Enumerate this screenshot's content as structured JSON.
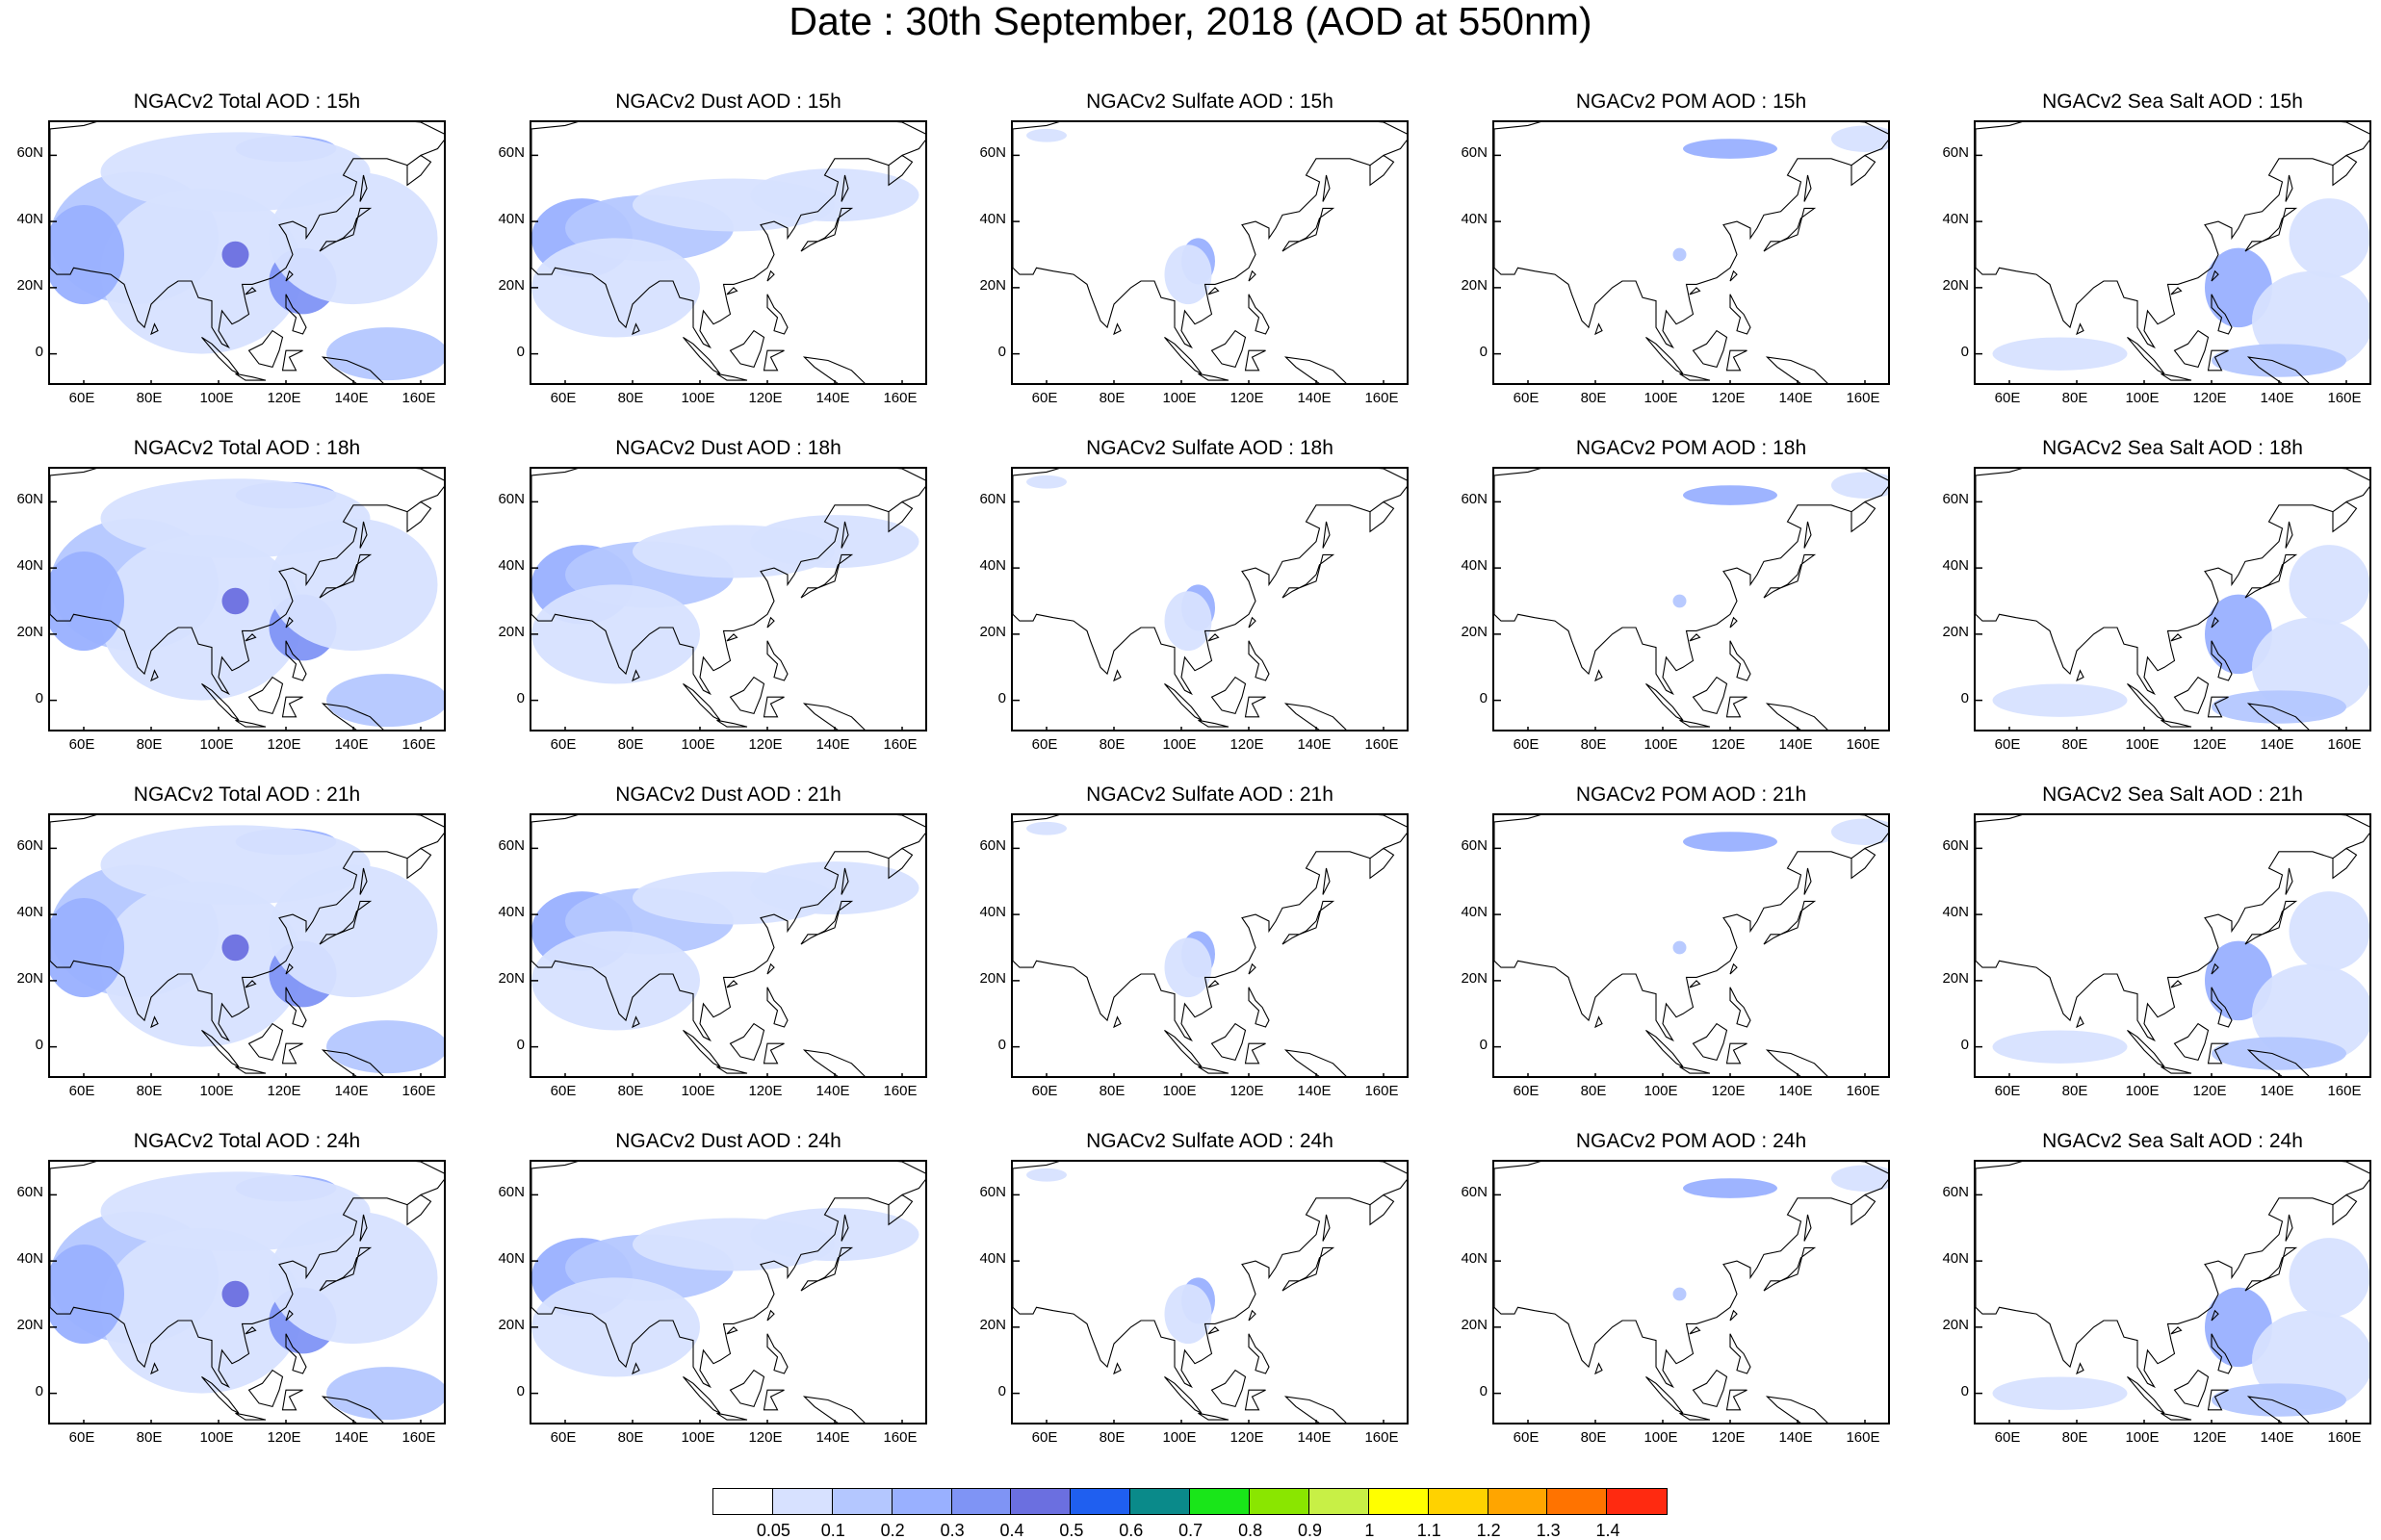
{
  "title": "Date : 30th September, 2018 (AOD at 550nm)",
  "panel_titles": [
    [
      "NGACv2 Total AOD : 15h",
      "NGACv2 Dust AOD : 15h",
      "NGACv2 Sulfate AOD : 15h",
      "NGACv2 POM AOD : 15h",
      "NGACv2 Sea Salt AOD : 15h"
    ],
    [
      "NGACv2 Total AOD : 18h",
      "NGACv2 Dust AOD : 18h",
      "NGACv2 Sulfate AOD : 18h",
      "NGACv2 POM AOD : 18h",
      "NGACv2 Sea Salt AOD : 18h"
    ],
    [
      "NGACv2 Total AOD : 21h",
      "NGACv2 Dust AOD : 21h",
      "NGACv2 Sulfate AOD : 21h",
      "NGACv2 POM AOD : 21h",
      "NGACv2 Sea Salt AOD : 21h"
    ],
    [
      "NGACv2 Total AOD : 24h",
      "NGACv2 Dust AOD : 24h",
      "NGACv2 Sulfate AOD : 24h",
      "NGACv2 POM AOD : 24h",
      "NGACv2 Sea Salt  AOD : 24h"
    ]
  ],
  "lat_ticks": [
    "60N",
    "40N",
    "20N",
    "0"
  ],
  "lon_ticks": [
    "60E",
    "80E",
    "100E",
    "120E",
    "140E",
    "160E"
  ],
  "colorbar": {
    "labels": [
      "0.05",
      "0.1",
      "0.2",
      "0.3",
      "0.4",
      "0.5",
      "0.6",
      "0.7",
      "0.8",
      "0.9",
      "1",
      "1.1",
      "1.2",
      "1.3",
      "1.4"
    ],
    "colors": [
      "#ffffff",
      "#d7e1ff",
      "#b4c7ff",
      "#99b0ff",
      "#7f94f5",
      "#6b6fe0",
      "#1f5ff0",
      "#0a8a8a",
      "#19e619",
      "#8ae600",
      "#c8f046",
      "#ffff00",
      "#ffd200",
      "#ffa500",
      "#ff7300",
      "#ff2a10"
    ]
  }
}
